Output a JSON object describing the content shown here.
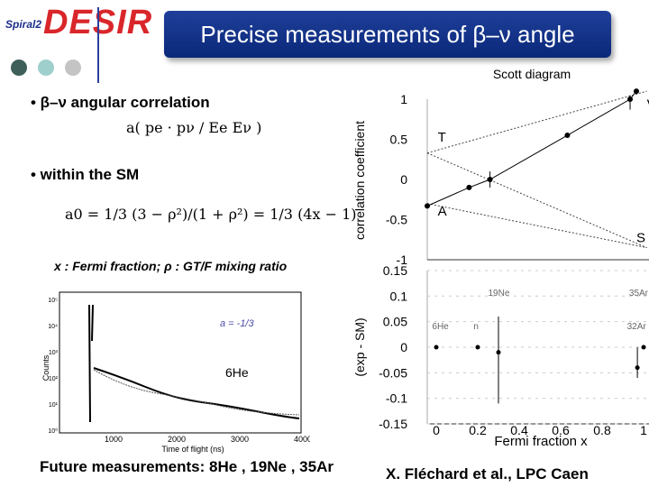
{
  "header": {
    "logo_text": "DESIR",
    "logo_sub": "Spiral2",
    "title": "Precise measurements of β–ν angle",
    "dot_colors": [
      "#3f5f5a",
      "#9fcfcc",
      "#c4c4c4"
    ]
  },
  "bullets": {
    "b1": "• β–ν  angular correlation",
    "b1_formula": "a( pe · pν / Ee Eν )",
    "b2": "• within the SM",
    "b2_formula": "a0 = 1/3 (3 − ρ²)/(1 + ρ²) = 1/3 (4x − 1)"
  },
  "caption": "x : Fermi fraction;  ρ : GT/F mixing ratio",
  "inset": {
    "annotation": "a = -1/3",
    "nucleus": "6He",
    "xlabel": "Time of flight (ns)",
    "ylabel": "Counts",
    "xticks": [
      "1000",
      "2000",
      "3000",
      "4000"
    ],
    "yticks": [
      "10⁵",
      "10⁴",
      "10³",
      "10²",
      "10¹",
      "10⁰"
    ]
  },
  "footer": {
    "left": "Future measurements: 8He , 19Ne , 35Ar",
    "right": "X. Fléchard et al., LPC Caen"
  },
  "chart_data": [
    {
      "type": "line",
      "title": "Scott diagram",
      "ylabel": "correlation coefficient",
      "ylim": [
        -1,
        1
      ],
      "yticks": [
        "1",
        "0.5",
        "0",
        "-0.5",
        "-1"
      ],
      "corner_labels": [
        "T",
        "A",
        "S",
        "V"
      ],
      "x": [
        0,
        0.2,
        0.3,
        0.67,
        0.97,
        1.0
      ],
      "y": [
        -0.33,
        -0.1,
        0.0,
        0.55,
        1.0,
        1.1
      ]
    },
    {
      "type": "scatter",
      "xlabel": "Fermi fraction x",
      "ylabel": "(exp - SM)",
      "xlim": [
        0,
        1
      ],
      "ylim": [
        -0.15,
        0.15
      ],
      "xticks": [
        "0",
        "0.2",
        "0.4",
        "0.6",
        "0.8",
        "1"
      ],
      "yticks": [
        "0.15",
        "0.1",
        "0.05",
        "0",
        "-0.05",
        "-0.1",
        "-0.15"
      ],
      "labels": [
        "19Ne",
        "35Ar",
        "6He",
        "n",
        "32Ar"
      ],
      "x": [
        0,
        0.2,
        0.3,
        0.97,
        1.0
      ],
      "y": [
        0,
        0,
        -0.01,
        -0.04,
        0
      ]
    }
  ]
}
